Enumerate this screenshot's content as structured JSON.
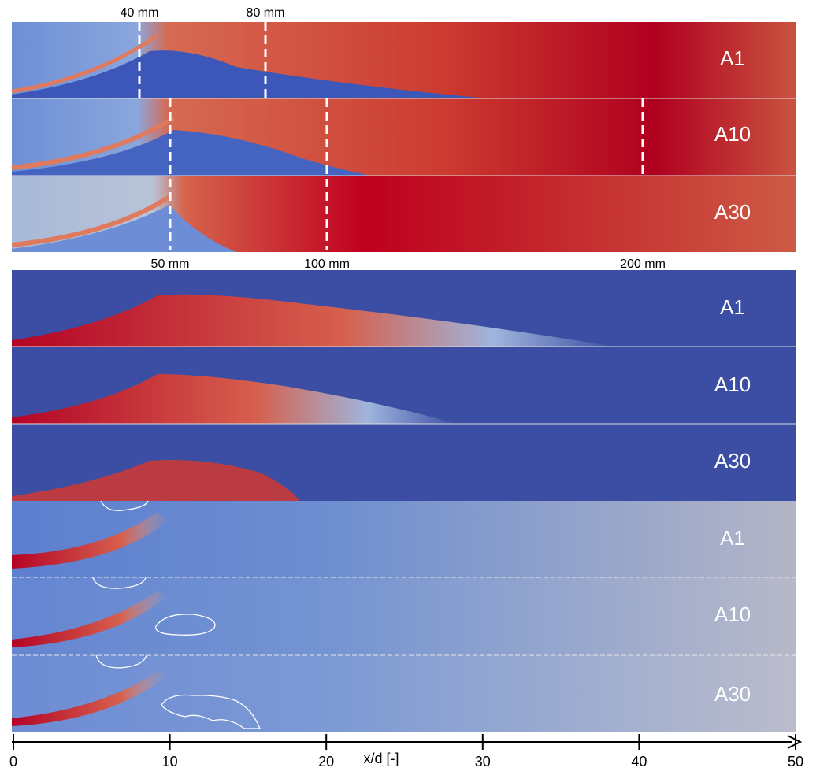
{
  "top_panels": {
    "labels": [
      "A1",
      "A10",
      "A30"
    ],
    "markers_top": [
      "40 mm",
      "80 mm"
    ],
    "markers_bottom": [
      "50 mm",
      "100 mm",
      "200 mm"
    ]
  },
  "middle_panels": {
    "labels": [
      "A1",
      "A10",
      "A30"
    ]
  },
  "bottom_panels": {
    "labels": [
      "A1",
      "A10",
      "A30"
    ]
  },
  "axis": {
    "label": "x/d [-]",
    "ticks": [
      0,
      10,
      20,
      30,
      40,
      50
    ]
  }
}
